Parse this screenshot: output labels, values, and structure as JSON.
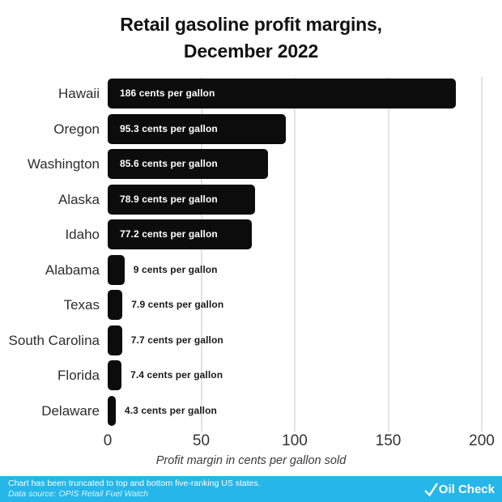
{
  "header": {
    "title_line1": "Retail gasoline profit margins,",
    "title_line2": "December 2022"
  },
  "chart_data": {
    "type": "bar",
    "orientation": "horizontal",
    "title": "Retail gasoline profit margins, December 2022",
    "categories": [
      "Hawaii",
      "Oregon",
      "Washington",
      "Alaska",
      "Idaho",
      "Alabama",
      "Texas",
      "South Carolina",
      "Florida",
      "Delaware"
    ],
    "values": [
      186,
      95.3,
      85.6,
      78.9,
      77.2,
      9,
      7.9,
      7.7,
      7.4,
      4.3
    ],
    "bar_labels": [
      "186 cents per gallon",
      "95.3 cents per gallon",
      "85.6 cents per gallon",
      "78.9 cents per gallon",
      "77.2 cents per gallon",
      "9 cents per gallon",
      "7.9 cents per gallon",
      "7.7 cents per gallon",
      "7.4 cents per gallon",
      "4.3 cents per gallon"
    ],
    "xlabel": "Profit margin in cents per gallon sold",
    "ylabel": "",
    "xlim": [
      0,
      200
    ],
    "xticks": [
      0,
      50,
      100,
      150,
      200
    ],
    "gridline_values": [
      50,
      100,
      150,
      200
    ],
    "grid": true,
    "legend": false,
    "bar_color": "#0c0c0c",
    "value_label_inside_color": "#ffffff",
    "value_label_outside_color": "#1a1a1a",
    "gridline_color": "#e3e3e3"
  },
  "footer": {
    "note": "Chart has been truncated to top and bottom five-ranking US states.",
    "source": "Data source: OPIS Retail Fuel Watch",
    "logo_icon": "check-icon",
    "logo_text": "Oil Check",
    "background_color": "#26b6e9"
  }
}
